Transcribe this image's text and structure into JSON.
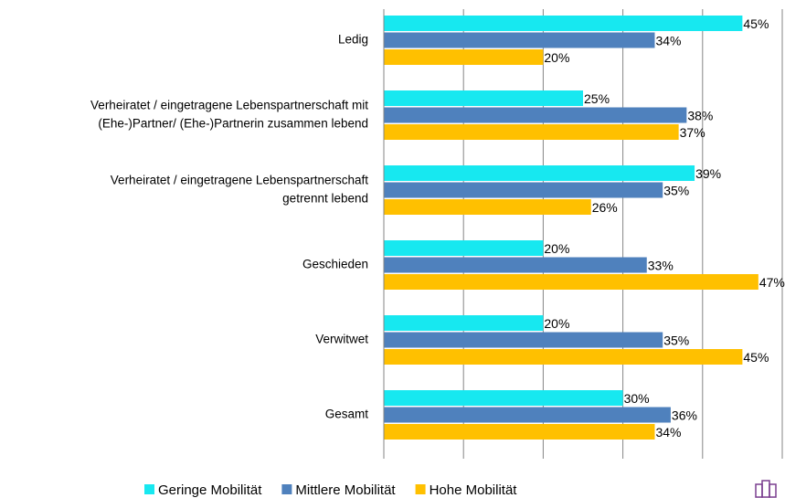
{
  "chart_data": {
    "type": "bar",
    "orientation": "horizontal",
    "categories": [
      [
        "Ledig"
      ],
      [
        "Verheiratet / eingetragene Lebenspartnerschaft mit",
        "(Ehe-)Partner/ (Ehe-)Partnerin zusammen lebend"
      ],
      [
        "Verheiratet / eingetragene Lebenspartnerschaft",
        "getrennt lebend"
      ],
      [
        "Geschieden"
      ],
      [
        "Verwitwet"
      ],
      [
        "Gesamt"
      ]
    ],
    "series": [
      {
        "name": "Geringe Mobilität",
        "color": "#17e8f0",
        "values": [
          45,
          25,
          39,
          20,
          20,
          30
        ],
        "value_labels": [
          "45%",
          "25%",
          "39%",
          "20%",
          "20%",
          "30%"
        ]
      },
      {
        "name": "Mittlere Mobilität",
        "color": "#4f81bd",
        "values": [
          34,
          38,
          35,
          33,
          35,
          36
        ],
        "value_labels": [
          "34%",
          "38%",
          "35%",
          "33%",
          "35%",
          "36%"
        ]
      },
      {
        "name": "Hohe Mobilität",
        "color": "#ffc000",
        "values": [
          20,
          37,
          26,
          47,
          45,
          34
        ],
        "value_labels": [
          "20%",
          "37%",
          "26%",
          "47%",
          "45%",
          "34%"
        ]
      }
    ],
    "xlim": [
      0,
      50
    ],
    "xticks": [
      0,
      10,
      20,
      30,
      40,
      50
    ],
    "grid": true,
    "legend": "bottom"
  }
}
